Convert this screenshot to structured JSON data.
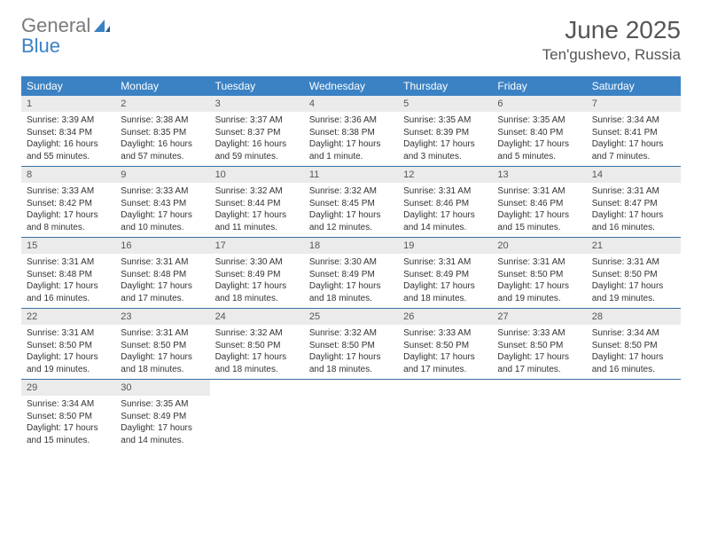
{
  "logo": {
    "part1": "General",
    "part2": "Blue"
  },
  "title": "June 2025",
  "location": "Ten'gushevo, Russia",
  "header_bg": "#3b82c4",
  "daynum_bg": "#ebebeb",
  "week_border": "#3b6fa0",
  "dayNames": [
    "Sunday",
    "Monday",
    "Tuesday",
    "Wednesday",
    "Thursday",
    "Friday",
    "Saturday"
  ],
  "weeks": [
    [
      {
        "n": "1",
        "sr": "3:39 AM",
        "ss": "8:34 PM",
        "dl": "16 hours and 55 minutes."
      },
      {
        "n": "2",
        "sr": "3:38 AM",
        "ss": "8:35 PM",
        "dl": "16 hours and 57 minutes."
      },
      {
        "n": "3",
        "sr": "3:37 AM",
        "ss": "8:37 PM",
        "dl": "16 hours and 59 minutes."
      },
      {
        "n": "4",
        "sr": "3:36 AM",
        "ss": "8:38 PM",
        "dl": "17 hours and 1 minute."
      },
      {
        "n": "5",
        "sr": "3:35 AM",
        "ss": "8:39 PM",
        "dl": "17 hours and 3 minutes."
      },
      {
        "n": "6",
        "sr": "3:35 AM",
        "ss": "8:40 PM",
        "dl": "17 hours and 5 minutes."
      },
      {
        "n": "7",
        "sr": "3:34 AM",
        "ss": "8:41 PM",
        "dl": "17 hours and 7 minutes."
      }
    ],
    [
      {
        "n": "8",
        "sr": "3:33 AM",
        "ss": "8:42 PM",
        "dl": "17 hours and 8 minutes."
      },
      {
        "n": "9",
        "sr": "3:33 AM",
        "ss": "8:43 PM",
        "dl": "17 hours and 10 minutes."
      },
      {
        "n": "10",
        "sr": "3:32 AM",
        "ss": "8:44 PM",
        "dl": "17 hours and 11 minutes."
      },
      {
        "n": "11",
        "sr": "3:32 AM",
        "ss": "8:45 PM",
        "dl": "17 hours and 12 minutes."
      },
      {
        "n": "12",
        "sr": "3:31 AM",
        "ss": "8:46 PM",
        "dl": "17 hours and 14 minutes."
      },
      {
        "n": "13",
        "sr": "3:31 AM",
        "ss": "8:46 PM",
        "dl": "17 hours and 15 minutes."
      },
      {
        "n": "14",
        "sr": "3:31 AM",
        "ss": "8:47 PM",
        "dl": "17 hours and 16 minutes."
      }
    ],
    [
      {
        "n": "15",
        "sr": "3:31 AM",
        "ss": "8:48 PM",
        "dl": "17 hours and 16 minutes."
      },
      {
        "n": "16",
        "sr": "3:31 AM",
        "ss": "8:48 PM",
        "dl": "17 hours and 17 minutes."
      },
      {
        "n": "17",
        "sr": "3:30 AM",
        "ss": "8:49 PM",
        "dl": "17 hours and 18 minutes."
      },
      {
        "n": "18",
        "sr": "3:30 AM",
        "ss": "8:49 PM",
        "dl": "17 hours and 18 minutes."
      },
      {
        "n": "19",
        "sr": "3:31 AM",
        "ss": "8:49 PM",
        "dl": "17 hours and 18 minutes."
      },
      {
        "n": "20",
        "sr": "3:31 AM",
        "ss": "8:50 PM",
        "dl": "17 hours and 19 minutes."
      },
      {
        "n": "21",
        "sr": "3:31 AM",
        "ss": "8:50 PM",
        "dl": "17 hours and 19 minutes."
      }
    ],
    [
      {
        "n": "22",
        "sr": "3:31 AM",
        "ss": "8:50 PM",
        "dl": "17 hours and 19 minutes."
      },
      {
        "n": "23",
        "sr": "3:31 AM",
        "ss": "8:50 PM",
        "dl": "17 hours and 18 minutes."
      },
      {
        "n": "24",
        "sr": "3:32 AM",
        "ss": "8:50 PM",
        "dl": "17 hours and 18 minutes."
      },
      {
        "n": "25",
        "sr": "3:32 AM",
        "ss": "8:50 PM",
        "dl": "17 hours and 18 minutes."
      },
      {
        "n": "26",
        "sr": "3:33 AM",
        "ss": "8:50 PM",
        "dl": "17 hours and 17 minutes."
      },
      {
        "n": "27",
        "sr": "3:33 AM",
        "ss": "8:50 PM",
        "dl": "17 hours and 17 minutes."
      },
      {
        "n": "28",
        "sr": "3:34 AM",
        "ss": "8:50 PM",
        "dl": "17 hours and 16 minutes."
      }
    ],
    [
      {
        "n": "29",
        "sr": "3:34 AM",
        "ss": "8:50 PM",
        "dl": "17 hours and 15 minutes."
      },
      {
        "n": "30",
        "sr": "3:35 AM",
        "ss": "8:49 PM",
        "dl": "17 hours and 14 minutes."
      },
      null,
      null,
      null,
      null,
      null
    ]
  ],
  "labels": {
    "sunrise": "Sunrise: ",
    "sunset": "Sunset: ",
    "daylight": "Daylight: "
  }
}
